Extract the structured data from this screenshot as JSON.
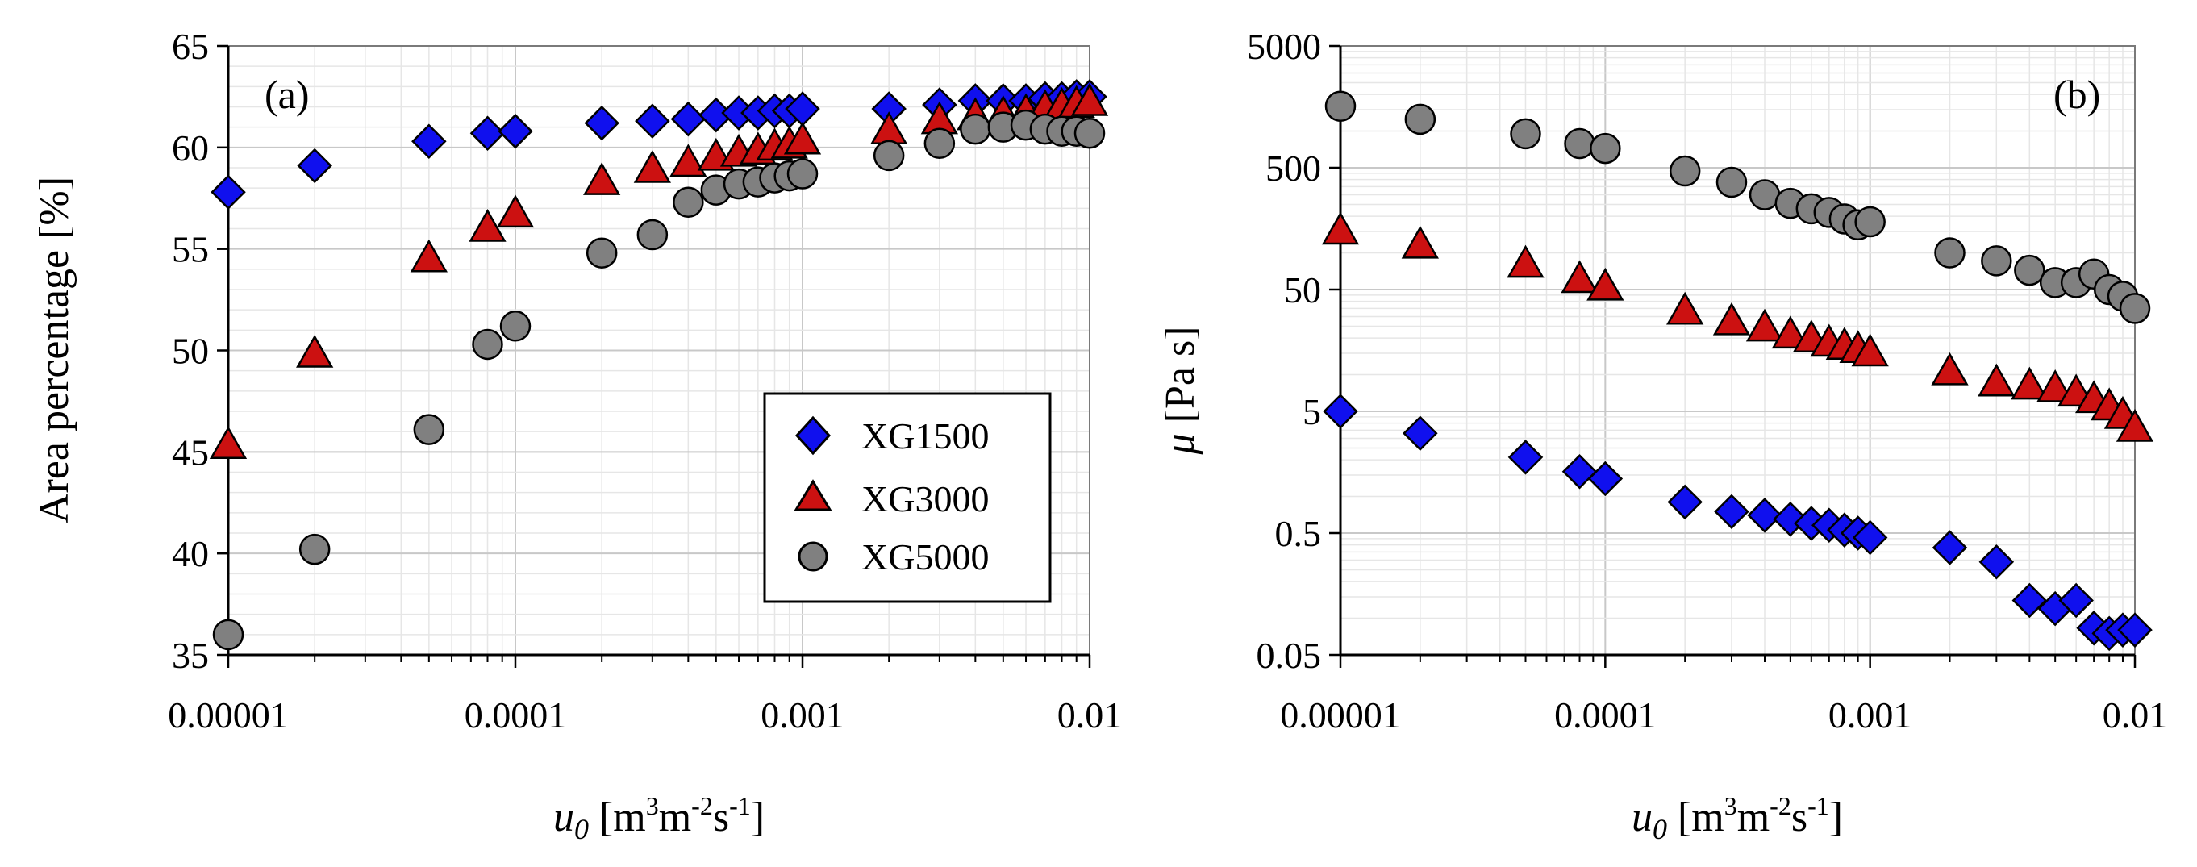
{
  "chart_data": [
    {
      "type": "scatter",
      "panel_label": "(a)",
      "xscale": "log",
      "yscale": "linear",
      "xlim": [
        1e-05,
        0.01
      ],
      "ylim": [
        35,
        65
      ],
      "xticks": [
        1e-05,
        0.0001,
        0.001,
        0.01
      ],
      "xtick_labels": [
        "0.00001",
        "0.0001",
        "0.001",
        "0.01"
      ],
      "yticks": [
        35,
        40,
        45,
        50,
        55,
        60,
        65
      ],
      "ytick_labels": [
        "35",
        "40",
        "45",
        "50",
        "55",
        "60",
        "65"
      ],
      "ylabel": "Area percentage [%]",
      "xlabel": {
        "sym": "u",
        "sub": "0",
        "open": " [m",
        "sup1": "3",
        "mid": "m",
        "sup2": "-2",
        "s": "s",
        "sup3": "-1",
        "close": "]"
      },
      "legend_position": "bottom-right",
      "grid": true,
      "series": [
        {
          "name": "XG1500",
          "marker": "diamond",
          "color": "#1010ee",
          "x": [
            1e-05,
            2e-05,
            5e-05,
            8e-05,
            0.0001,
            0.0002,
            0.0003,
            0.0004,
            0.0005,
            0.0006,
            0.0007,
            0.0008,
            0.0009,
            0.001,
            0.002,
            0.003,
            0.004,
            0.005,
            0.006,
            0.007,
            0.008,
            0.009,
            0.01
          ],
          "y": [
            57.8,
            59.1,
            60.3,
            60.7,
            60.8,
            61.2,
            61.3,
            61.4,
            61.6,
            61.7,
            61.7,
            61.8,
            61.8,
            61.9,
            61.9,
            62.1,
            62.3,
            62.3,
            62.3,
            62.4,
            62.4,
            62.5,
            62.5
          ]
        },
        {
          "name": "XG3000",
          "marker": "triangle",
          "color": "#cc1111",
          "x": [
            1e-05,
            2e-05,
            5e-05,
            8e-05,
            0.0001,
            0.0002,
            0.0003,
            0.0004,
            0.0005,
            0.0006,
            0.0007,
            0.0008,
            0.0009,
            0.001,
            0.002,
            0.003,
            0.004,
            0.005,
            0.006,
            0.007,
            0.008,
            0.009,
            0.01
          ],
          "y": [
            45.3,
            49.8,
            54.5,
            56.0,
            56.7,
            58.3,
            58.9,
            59.2,
            59.5,
            59.7,
            59.8,
            60.0,
            60.1,
            60.3,
            60.8,
            61.3,
            61.5,
            61.6,
            61.7,
            61.9,
            62.0,
            62.1,
            62.2
          ]
        },
        {
          "name": "XG5000",
          "marker": "circle",
          "color": "#808080",
          "x": [
            1e-05,
            2e-05,
            5e-05,
            8e-05,
            0.0001,
            0.0002,
            0.0003,
            0.0004,
            0.0005,
            0.0006,
            0.0007,
            0.0008,
            0.0009,
            0.001,
            0.002,
            0.003,
            0.004,
            0.005,
            0.006,
            0.007,
            0.008,
            0.009,
            0.01
          ],
          "y": [
            36.0,
            40.2,
            46.1,
            50.3,
            51.2,
            54.8,
            55.7,
            57.3,
            57.9,
            58.2,
            58.3,
            58.5,
            58.6,
            58.7,
            59.6,
            60.2,
            60.9,
            61.0,
            61.1,
            60.9,
            60.8,
            60.8,
            60.7
          ]
        }
      ]
    },
    {
      "type": "scatter",
      "panel_label": "(b)",
      "xscale": "log",
      "yscale": "log",
      "xlim": [
        1e-05,
        0.01
      ],
      "ylim": [
        0.05,
        5000
      ],
      "xticks": [
        1e-05,
        0.0001,
        0.001,
        0.01
      ],
      "xtick_labels": [
        "0.00001",
        "0.0001",
        "0.001",
        "0.01"
      ],
      "yticks": [
        0.05,
        0.5,
        5,
        50,
        500,
        5000
      ],
      "ytick_labels": [
        "0.05",
        "0.5",
        "5",
        "50",
        "500",
        "5000"
      ],
      "ylabel": {
        "sym": "μ",
        "rest": " [Pa s]"
      },
      "xlabel": {
        "sym": "u",
        "sub": "0",
        "open": " [m",
        "sup1": "3",
        "mid": "m",
        "sup2": "-2",
        "s": "s",
        "sup3": "-1",
        "close": "]"
      },
      "grid": true,
      "series": [
        {
          "name": "XG1500",
          "marker": "diamond",
          "color": "#1010ee",
          "x": [
            1e-05,
            2e-05,
            5e-05,
            8e-05,
            0.0001,
            0.0002,
            0.0003,
            0.0004,
            0.0005,
            0.0006,
            0.0007,
            0.0008,
            0.0009,
            0.001,
            0.002,
            0.003,
            0.004,
            0.005,
            0.006,
            0.007,
            0.008,
            0.009,
            0.01
          ],
          "y": [
            5.0,
            3.3,
            2.1,
            1.6,
            1.4,
            0.9,
            0.75,
            0.7,
            0.65,
            0.6,
            0.58,
            0.53,
            0.5,
            0.46,
            0.38,
            0.29,
            0.14,
            0.12,
            0.14,
            0.083,
            0.075,
            0.08,
            0.08
          ]
        },
        {
          "name": "XG3000",
          "marker": "triangle",
          "color": "#cc1111",
          "x": [
            1e-05,
            2e-05,
            5e-05,
            8e-05,
            0.0001,
            0.0002,
            0.0003,
            0.0004,
            0.0005,
            0.0006,
            0.0007,
            0.0008,
            0.0009,
            0.001,
            0.002,
            0.003,
            0.004,
            0.005,
            0.006,
            0.007,
            0.008,
            0.009,
            0.01
          ],
          "y": [
            150,
            115,
            80,
            60,
            52,
            33,
            27,
            24,
            21,
            19.5,
            18,
            17,
            16,
            15,
            10.5,
            8.5,
            8.0,
            7.6,
            7.0,
            6.2,
            5.4,
            4.6,
            3.6
          ]
        },
        {
          "name": "XG5000",
          "marker": "circle",
          "color": "#808080",
          "x": [
            1e-05,
            2e-05,
            5e-05,
            8e-05,
            0.0001,
            0.0002,
            0.0003,
            0.0004,
            0.0005,
            0.0006,
            0.0007,
            0.0008,
            0.0009,
            0.001,
            0.002,
            0.003,
            0.004,
            0.005,
            0.006,
            0.007,
            0.008,
            0.009,
            0.01
          ],
          "y": [
            1600,
            1250,
            950,
            790,
            720,
            470,
            380,
            300,
            255,
            230,
            215,
            190,
            170,
            180,
            100,
            86,
            72,
            57,
            57,
            67,
            50,
            44,
            35
          ]
        }
      ]
    }
  ],
  "legend": {
    "items": [
      "XG1500",
      "XG3000",
      "XG5000"
    ]
  }
}
